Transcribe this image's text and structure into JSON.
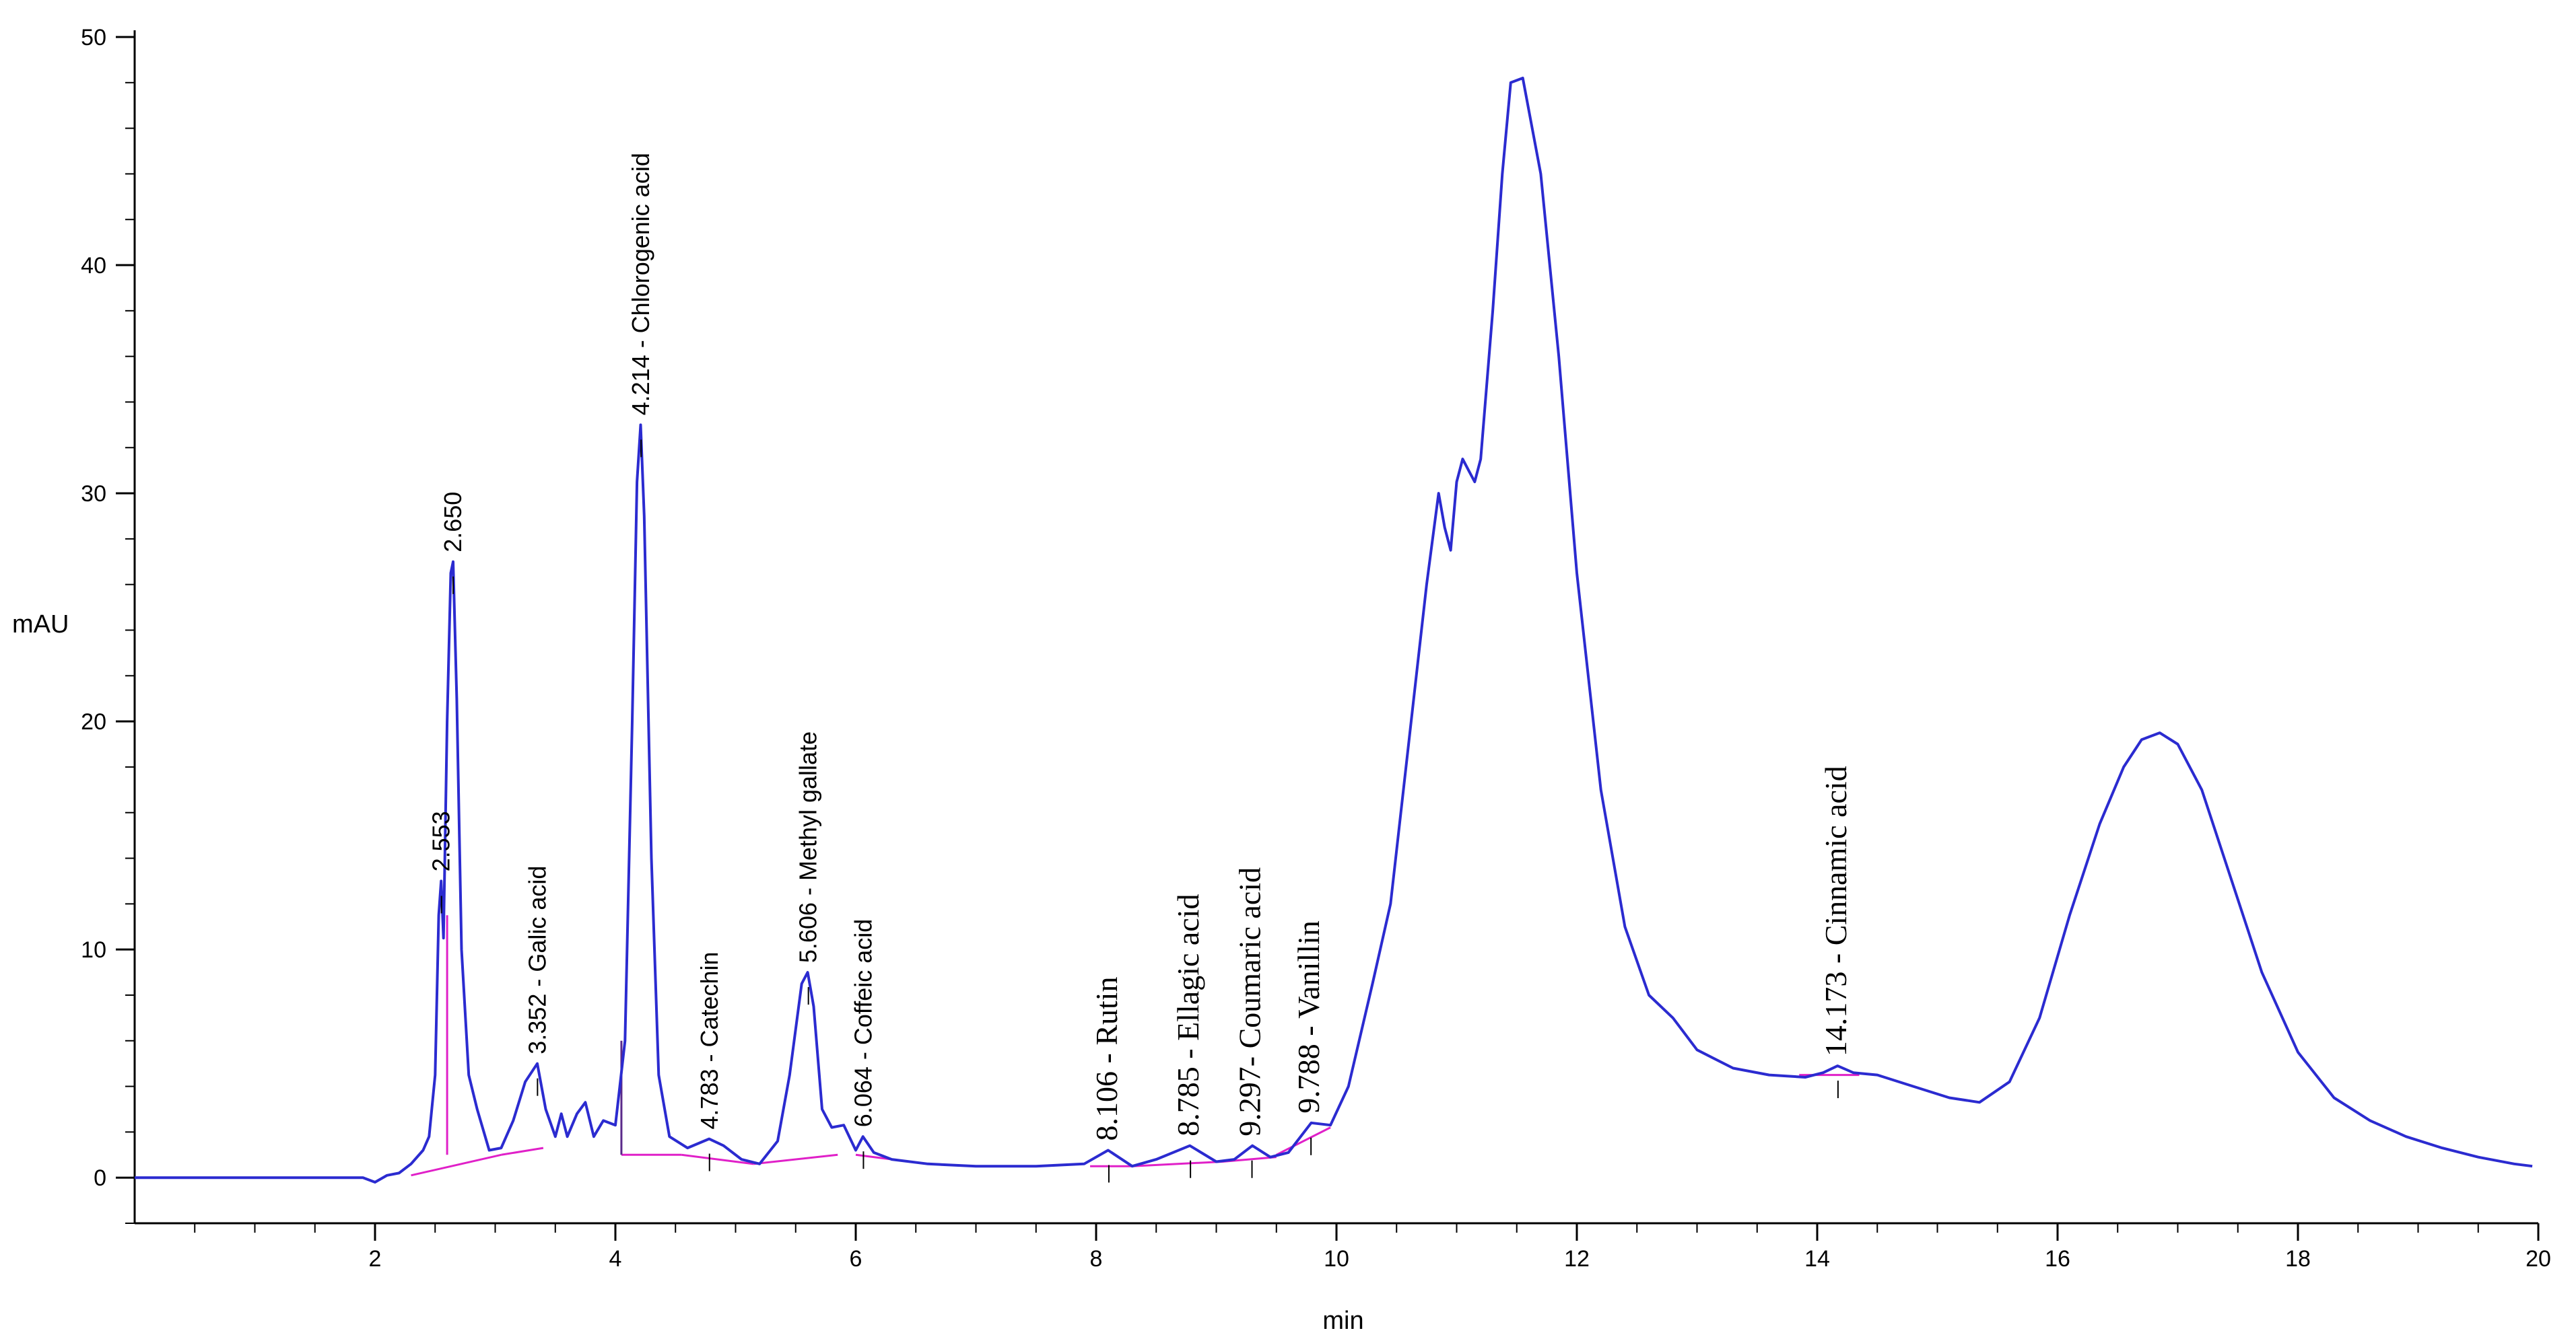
{
  "chart_data": {
    "type": "line",
    "xlabel": "min",
    "ylabel": "mAU",
    "xlim": [
      0,
      20
    ],
    "ylim": [
      -2,
      50
    ],
    "x_ticks": [
      2,
      4,
      6,
      8,
      10,
      12,
      14,
      16,
      18,
      20
    ],
    "y_ticks": [
      0,
      10,
      20,
      30,
      40,
      50
    ],
    "colors": {
      "trace": "#2b2bd0",
      "baseline": "#e020c8"
    },
    "series": [
      {
        "x": [
          0.0,
          1.0,
          1.9,
          2.0,
          2.1,
          2.2,
          2.3,
          2.4,
          2.45,
          2.5,
          2.53,
          2.55,
          2.57,
          2.6,
          2.63,
          2.65,
          2.68,
          2.72,
          2.78,
          2.85,
          2.95,
          3.05,
          3.15,
          3.25,
          3.35,
          3.42,
          3.5,
          3.55,
          3.6,
          3.68,
          3.75,
          3.82,
          3.9,
          4.0,
          4.08,
          4.14,
          4.18,
          4.21,
          4.24,
          4.3,
          4.36,
          4.45,
          4.6,
          4.78,
          4.9,
          5.05,
          5.2,
          5.35,
          5.45,
          5.55,
          5.6,
          5.65,
          5.72,
          5.8,
          5.9,
          6.0,
          6.06,
          6.15,
          6.3,
          6.6,
          7.0,
          7.5,
          7.9,
          8.1,
          8.3,
          8.5,
          8.78,
          9.0,
          9.15,
          9.3,
          9.45,
          9.6,
          9.79,
          9.95,
          10.1,
          10.3,
          10.45,
          10.6,
          10.75,
          10.85,
          10.9,
          10.95,
          11.0,
          11.05,
          11.1,
          11.15,
          11.2,
          11.3,
          11.38,
          11.45,
          11.55,
          11.7,
          11.85,
          12.0,
          12.2,
          12.4,
          12.6,
          12.8,
          13.0,
          13.3,
          13.6,
          13.9,
          14.05,
          14.17,
          14.3,
          14.5,
          14.8,
          15.1,
          15.35,
          15.6,
          15.85,
          16.1,
          16.35,
          16.55,
          16.7,
          16.85,
          17.0,
          17.2,
          17.45,
          17.7,
          18.0,
          18.3,
          18.6,
          18.9,
          19.2,
          19.5,
          19.8,
          19.95
        ],
        "y": [
          0.0,
          0.0,
          0.0,
          -0.2,
          0.1,
          0.2,
          0.6,
          1.2,
          1.8,
          4.5,
          11.5,
          13.0,
          10.5,
          20.0,
          26.5,
          27.0,
          21.0,
          10.0,
          4.5,
          3.0,
          1.2,
          1.3,
          2.5,
          4.2,
          5.0,
          3.0,
          1.8,
          2.8,
          1.8,
          2.8,
          3.3,
          1.8,
          2.5,
          2.3,
          6.0,
          20.0,
          30.5,
          33.0,
          29.0,
          14.0,
          4.5,
          1.8,
          1.3,
          1.7,
          1.4,
          0.8,
          0.6,
          1.6,
          4.5,
          8.5,
          9.0,
          7.5,
          3.0,
          2.2,
          2.3,
          1.2,
          1.8,
          1.1,
          0.8,
          0.6,
          0.5,
          0.5,
          0.6,
          1.2,
          0.5,
          0.8,
          1.4,
          0.7,
          0.8,
          1.4,
          0.9,
          1.1,
          2.4,
          2.3,
          4.0,
          8.5,
          12.0,
          19.0,
          26.0,
          30.0,
          28.5,
          27.5,
          30.5,
          31.5,
          31.0,
          30.5,
          31.5,
          38.0,
          44.0,
          48.0,
          48.2,
          44.0,
          36.0,
          26.5,
          17.0,
          11.0,
          8.0,
          7.0,
          5.6,
          4.8,
          4.5,
          4.4,
          4.6,
          4.9,
          4.6,
          4.5,
          4.0,
          3.5,
          3.3,
          4.2,
          7.0,
          11.5,
          15.5,
          18.0,
          19.2,
          19.5,
          19.0,
          17.0,
          13.0,
          9.0,
          5.5,
          3.5,
          2.5,
          1.8,
          1.3,
          0.9,
          0.6,
          0.5
        ]
      }
    ],
    "baselines": [
      [
        [
          2.3,
          0.1
        ],
        [
          3.05,
          1.0
        ]
      ],
      [
        [
          3.05,
          1.0
        ],
        [
          3.4,
          1.3
        ]
      ],
      [
        [
          4.05,
          1.0
        ],
        [
          4.55,
          1.0
        ]
      ],
      [
        [
          4.55,
          1.0
        ],
        [
          5.15,
          0.6
        ]
      ],
      [
        [
          5.15,
          0.6
        ],
        [
          5.85,
          1.0
        ]
      ],
      [
        [
          6.0,
          1.0
        ],
        [
          6.6,
          0.6
        ]
      ],
      [
        [
          7.95,
          0.5
        ],
        [
          8.3,
          0.5
        ]
      ],
      [
        [
          8.3,
          0.5
        ],
        [
          9.05,
          0.7
        ]
      ],
      [
        [
          9.05,
          0.7
        ],
        [
          9.5,
          0.9
        ]
      ],
      [
        [
          9.5,
          1.0
        ],
        [
          9.95,
          2.2
        ]
      ],
      [
        [
          13.85,
          4.5
        ],
        [
          14.35,
          4.5
        ]
      ]
    ],
    "drop_lines": [
      2.6,
      4.05
    ],
    "peak_labels": [
      {
        "x": 2.553,
        "y": 13.0,
        "text": "2.553",
        "font": "sans"
      },
      {
        "x": 2.65,
        "y": 27.0,
        "text": "2.650",
        "font": "sans"
      },
      {
        "x": 3.352,
        "y": 5.0,
        "text": "3.352 -  Galic acid",
        "font": "sans"
      },
      {
        "x": 4.214,
        "y": 33.0,
        "text": "4.214 -  Chlorogenic acid",
        "font": "sans"
      },
      {
        "x": 4.783,
        "y": 1.7,
        "text": "4.783 -  Catechin",
        "font": "sans"
      },
      {
        "x": 5.606,
        "y": 9.0,
        "text": "5.606 -  Methyl gallate",
        "font": "sans"
      },
      {
        "x": 6.064,
        "y": 1.8,
        "text": "6.064 -  Coffeic acid",
        "font": "sans"
      },
      {
        "x": 8.106,
        "y": 1.2,
        "text": "8.106 - Rutin",
        "font": "serif"
      },
      {
        "x": 8.785,
        "y": 1.4,
        "text": "8.785 - Ellagic acid",
        "font": "serif"
      },
      {
        "x": 9.297,
        "y": 1.4,
        "text": "9.297- Coumaric acid",
        "font": "serif"
      },
      {
        "x": 9.788,
        "y": 2.4,
        "text": "9.788 - Vanillin",
        "font": "serif"
      },
      {
        "x": 14.173,
        "y": 4.9,
        "text": "14.173 - Cinnamic acid",
        "font": "serif"
      }
    ]
  }
}
